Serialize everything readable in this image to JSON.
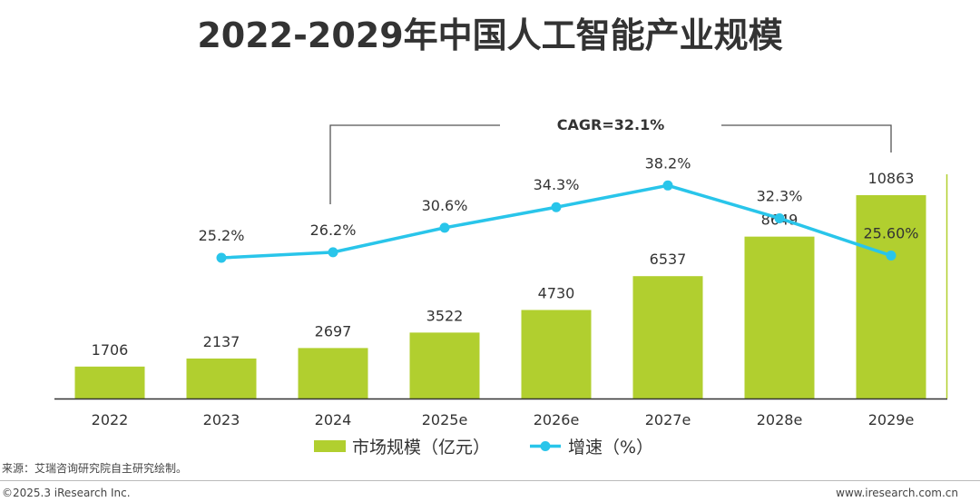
{
  "title": "2022-2029年中国人工智能产业规模",
  "chart_data": {
    "type": "bar",
    "categories": [
      "2022",
      "2023",
      "2024",
      "2025e",
      "2026e",
      "2027e",
      "2028e",
      "2029e"
    ],
    "series": [
      {
        "name": "市场规模（亿元）",
        "type": "bar",
        "values": [
          1706,
          2137,
          2697,
          3522,
          4730,
          6537,
          8649,
          10863
        ],
        "labels": [
          "1706",
          "2137",
          "2697",
          "3522",
          "4730",
          "6537",
          "8649",
          "10863"
        ]
      },
      {
        "name": "增速（%）",
        "type": "line",
        "values": [
          null,
          25.2,
          26.2,
          30.6,
          34.3,
          38.2,
          32.3,
          25.6
        ],
        "labels": [
          null,
          "25.2%",
          "26.2%",
          "30.6%",
          "34.3%",
          "38.2%",
          "32.3%",
          "25.60%"
        ]
      }
    ],
    "annotation": "CAGR=32.1%",
    "colors": {
      "bar": "#b1cf2f",
      "line": "#29c5ea",
      "axis": "#333333",
      "bracket": "#555555"
    }
  },
  "legend": {
    "bar_label": "市场规模（亿元）",
    "line_label": "增速（%）"
  },
  "footer": {
    "source": "来源：艾瑞咨询研究院自主研究绘制。",
    "copyright": "©2025.3 iResearch Inc.",
    "website": "www.iresearch.com.cn"
  }
}
